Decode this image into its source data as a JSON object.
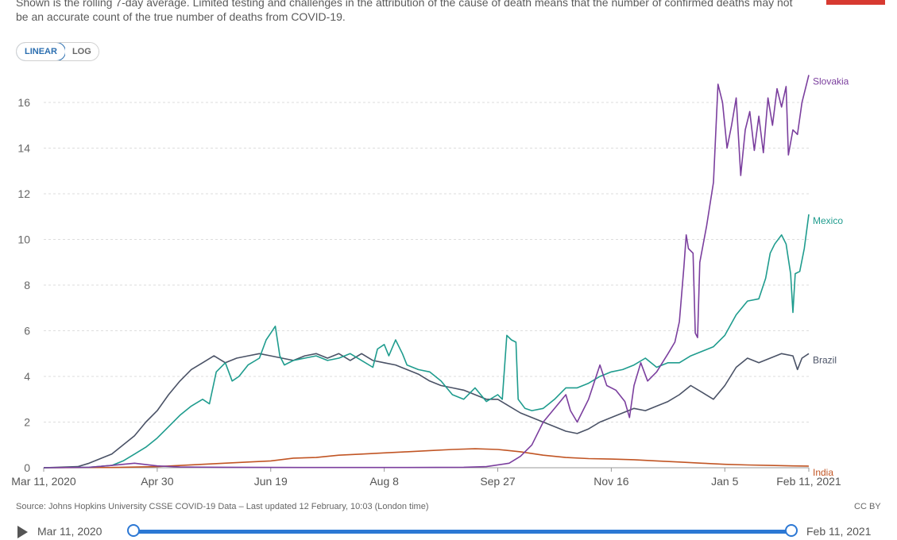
{
  "subtitle": "Shown is the rolling 7-day average. Limited testing and challenges in the attribution of the cause of death means that the number of confirmed deaths may not be an accurate count of the true number of deaths from COVID-19.",
  "scale_toggle": {
    "linear": "LINEAR",
    "log": "LOG"
  },
  "source": "Source: Johns Hopkins University CSSE COVID-19 Data – Last updated 12 February, 10:03 (London time)",
  "license": "CC BY",
  "timeline": {
    "start": "Mar 11, 2020",
    "end": "Feb 11, 2021"
  },
  "colors": {
    "flag": "#d73a31",
    "accent": "#2c78d4",
    "grid": "#dddddd"
  },
  "chart_data": {
    "type": "line",
    "ylim": [
      0,
      17
    ],
    "y_ticks": [
      0,
      2,
      4,
      6,
      8,
      10,
      12,
      14,
      16
    ],
    "x_ticks": [
      {
        "label": "Mar 11, 2020",
        "day": 0
      },
      {
        "label": "Apr 30",
        "day": 50
      },
      {
        "label": "Jun 19",
        "day": 100
      },
      {
        "label": "Aug 8",
        "day": 150
      },
      {
        "label": "Sep 27",
        "day": 200
      },
      {
        "label": "Nov 16",
        "day": 250
      },
      {
        "label": "Jan 5",
        "day": 300
      },
      {
        "label": "Feb 11, 2021",
        "day": 337
      }
    ],
    "x_unit": "days since Mar 11, 2020",
    "grid": true,
    "series": [
      {
        "name": "Slovakia",
        "color": "#7b3f9e",
        "points": [
          [
            0,
            0
          ],
          [
            20,
            0.02
          ],
          [
            30,
            0.1
          ],
          [
            40,
            0.2
          ],
          [
            50,
            0.08
          ],
          [
            60,
            0.03
          ],
          [
            80,
            0.02
          ],
          [
            120,
            0.01
          ],
          [
            160,
            0.01
          ],
          [
            185,
            0.02
          ],
          [
            195,
            0.05
          ],
          [
            205,
            0.2
          ],
          [
            210,
            0.5
          ],
          [
            215,
            1.0
          ],
          [
            220,
            2.0
          ],
          [
            225,
            2.6
          ],
          [
            230,
            3.2
          ],
          [
            232,
            2.5
          ],
          [
            235,
            2.0
          ],
          [
            240,
            3.0
          ],
          [
            245,
            4.5
          ],
          [
            248,
            3.6
          ],
          [
            252,
            3.4
          ],
          [
            256,
            2.9
          ],
          [
            258,
            2.2
          ],
          [
            260,
            3.6
          ],
          [
            263,
            4.6
          ],
          [
            266,
            3.8
          ],
          [
            270,
            4.2
          ],
          [
            275,
            5.0
          ],
          [
            278,
            5.5
          ],
          [
            280,
            6.4
          ],
          [
            282,
            8.8
          ],
          [
            283,
            10.2
          ],
          [
            284,
            9.6
          ],
          [
            286,
            9.4
          ],
          [
            287,
            5.9
          ],
          [
            288,
            5.7
          ],
          [
            289,
            9.0
          ],
          [
            292,
            10.6
          ],
          [
            295,
            12.5
          ],
          [
            297,
            16.8
          ],
          [
            299,
            16.0
          ],
          [
            301,
            14.0
          ],
          [
            303,
            15.0
          ],
          [
            305,
            16.2
          ],
          [
            307,
            12.8
          ],
          [
            309,
            14.8
          ],
          [
            311,
            15.6
          ],
          [
            313,
            13.9
          ],
          [
            315,
            15.4
          ],
          [
            317,
            13.8
          ],
          [
            319,
            16.2
          ],
          [
            321,
            15.0
          ],
          [
            323,
            16.6
          ],
          [
            325,
            15.8
          ],
          [
            327,
            16.7
          ],
          [
            328,
            13.7
          ],
          [
            330,
            14.8
          ],
          [
            332,
            14.6
          ],
          [
            334,
            16.0
          ],
          [
            337,
            17.2
          ]
        ]
      },
      {
        "name": "Mexico",
        "color": "#1f9c8e",
        "points": [
          [
            0,
            0
          ],
          [
            20,
            0.02
          ],
          [
            30,
            0.1
          ],
          [
            35,
            0.3
          ],
          [
            40,
            0.6
          ],
          [
            45,
            0.9
          ],
          [
            50,
            1.3
          ],
          [
            55,
            1.8
          ],
          [
            60,
            2.3
          ],
          [
            65,
            2.7
          ],
          [
            70,
            3.0
          ],
          [
            73,
            2.8
          ],
          [
            76,
            4.2
          ],
          [
            80,
            4.6
          ],
          [
            83,
            3.8
          ],
          [
            86,
            4.0
          ],
          [
            90,
            4.5
          ],
          [
            95,
            4.8
          ],
          [
            98,
            5.6
          ],
          [
            100,
            5.9
          ],
          [
            102,
            6.2
          ],
          [
            104,
            4.9
          ],
          [
            106,
            4.5
          ],
          [
            110,
            4.7
          ],
          [
            115,
            4.8
          ],
          [
            120,
            4.9
          ],
          [
            125,
            4.7
          ],
          [
            130,
            4.8
          ],
          [
            135,
            5.0
          ],
          [
            140,
            4.7
          ],
          [
            145,
            4.4
          ],
          [
            147,
            5.2
          ],
          [
            150,
            5.4
          ],
          [
            152,
            4.9
          ],
          [
            155,
            5.6
          ],
          [
            158,
            5.0
          ],
          [
            160,
            4.5
          ],
          [
            165,
            4.3
          ],
          [
            170,
            4.2
          ],
          [
            175,
            3.8
          ],
          [
            180,
            3.2
          ],
          [
            185,
            3.0
          ],
          [
            190,
            3.5
          ],
          [
            195,
            2.9
          ],
          [
            200,
            3.2
          ],
          [
            202,
            3.0
          ],
          [
            204,
            5.8
          ],
          [
            206,
            5.6
          ],
          [
            208,
            5.5
          ],
          [
            209,
            3.0
          ],
          [
            212,
            2.6
          ],
          [
            215,
            2.5
          ],
          [
            220,
            2.6
          ],
          [
            225,
            3.0
          ],
          [
            230,
            3.5
          ],
          [
            235,
            3.5
          ],
          [
            240,
            3.7
          ],
          [
            245,
            4.0
          ],
          [
            250,
            4.2
          ],
          [
            255,
            4.3
          ],
          [
            260,
            4.5
          ],
          [
            265,
            4.8
          ],
          [
            270,
            4.4
          ],
          [
            275,
            4.6
          ],
          [
            280,
            4.6
          ],
          [
            285,
            4.9
          ],
          [
            290,
            5.1
          ],
          [
            295,
            5.3
          ],
          [
            300,
            5.8
          ],
          [
            305,
            6.7
          ],
          [
            310,
            7.3
          ],
          [
            315,
            7.4
          ],
          [
            318,
            8.3
          ],
          [
            320,
            9.4
          ],
          [
            322,
            9.8
          ],
          [
            325,
            10.2
          ],
          [
            327,
            9.8
          ],
          [
            329,
            8.5
          ],
          [
            330,
            6.8
          ],
          [
            331,
            8.5
          ],
          [
            333,
            8.6
          ],
          [
            335,
            9.6
          ],
          [
            337,
            11.1
          ]
        ]
      },
      {
        "name": "Brazil",
        "color": "#4a5266",
        "points": [
          [
            0,
            0
          ],
          [
            15,
            0.05
          ],
          [
            20,
            0.2
          ],
          [
            25,
            0.4
          ],
          [
            30,
            0.6
          ],
          [
            35,
            1.0
          ],
          [
            40,
            1.4
          ],
          [
            45,
            2.0
          ],
          [
            50,
            2.5
          ],
          [
            55,
            3.2
          ],
          [
            60,
            3.8
          ],
          [
            65,
            4.3
          ],
          [
            70,
            4.6
          ],
          [
            75,
            4.9
          ],
          [
            80,
            4.6
          ],
          [
            85,
            4.8
          ],
          [
            90,
            4.9
          ],
          [
            95,
            5.0
          ],
          [
            100,
            4.9
          ],
          [
            105,
            4.8
          ],
          [
            110,
            4.7
          ],
          [
            115,
            4.9
          ],
          [
            120,
            5.0
          ],
          [
            125,
            4.8
          ],
          [
            130,
            5.0
          ],
          [
            135,
            4.7
          ],
          [
            140,
            5.0
          ],
          [
            145,
            4.7
          ],
          [
            150,
            4.6
          ],
          [
            155,
            4.5
          ],
          [
            160,
            4.3
          ],
          [
            165,
            4.1
          ],
          [
            170,
            3.8
          ],
          [
            175,
            3.6
          ],
          [
            180,
            3.5
          ],
          [
            185,
            3.4
          ],
          [
            190,
            3.2
          ],
          [
            195,
            3.0
          ],
          [
            200,
            3.0
          ],
          [
            205,
            2.7
          ],
          [
            210,
            2.4
          ],
          [
            215,
            2.2
          ],
          [
            220,
            2.0
          ],
          [
            225,
            1.8
          ],
          [
            230,
            1.6
          ],
          [
            235,
            1.5
          ],
          [
            240,
            1.7
          ],
          [
            245,
            2.0
          ],
          [
            250,
            2.2
          ],
          [
            255,
            2.4
          ],
          [
            260,
            2.6
          ],
          [
            265,
            2.5
          ],
          [
            270,
            2.7
          ],
          [
            275,
            2.9
          ],
          [
            280,
            3.2
          ],
          [
            285,
            3.6
          ],
          [
            290,
            3.3
          ],
          [
            295,
            3.0
          ],
          [
            300,
            3.6
          ],
          [
            305,
            4.4
          ],
          [
            310,
            4.8
          ],
          [
            315,
            4.6
          ],
          [
            320,
            4.8
          ],
          [
            325,
            5.0
          ],
          [
            330,
            4.9
          ],
          [
            332,
            4.3
          ],
          [
            334,
            4.8
          ],
          [
            337,
            5.0
          ]
        ]
      },
      {
        "name": "India",
        "color": "#c15524",
        "points": [
          [
            0,
            0
          ],
          [
            30,
            0.01
          ],
          [
            50,
            0.05
          ],
          [
            70,
            0.15
          ],
          [
            90,
            0.25
          ],
          [
            100,
            0.3
          ],
          [
            110,
            0.42
          ],
          [
            120,
            0.45
          ],
          [
            130,
            0.55
          ],
          [
            140,
            0.6
          ],
          [
            150,
            0.65
          ],
          [
            160,
            0.7
          ],
          [
            170,
            0.75
          ],
          [
            180,
            0.8
          ],
          [
            190,
            0.83
          ],
          [
            200,
            0.8
          ],
          [
            210,
            0.7
          ],
          [
            220,
            0.55
          ],
          [
            230,
            0.45
          ],
          [
            240,
            0.4
          ],
          [
            250,
            0.38
          ],
          [
            260,
            0.35
          ],
          [
            270,
            0.3
          ],
          [
            280,
            0.25
          ],
          [
            290,
            0.2
          ],
          [
            300,
            0.15
          ],
          [
            310,
            0.12
          ],
          [
            320,
            0.1
          ],
          [
            330,
            0.08
          ],
          [
            337,
            0.07
          ]
        ]
      }
    ]
  }
}
